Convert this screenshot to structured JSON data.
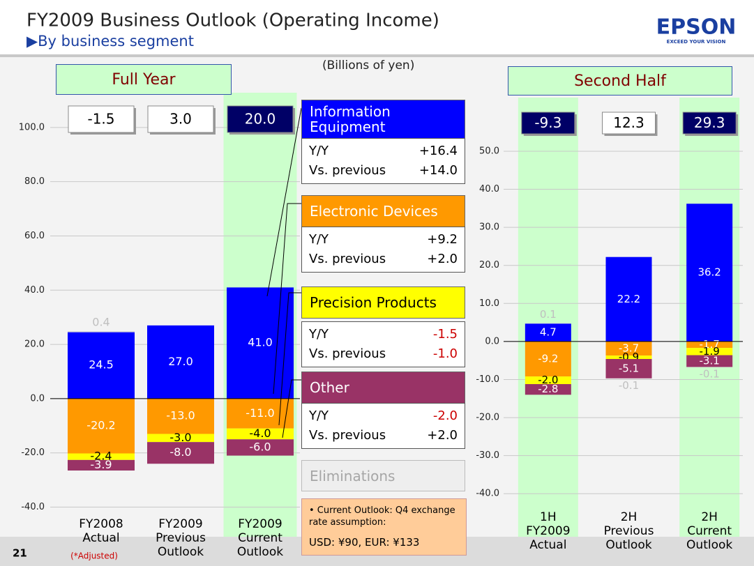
{
  "header": {
    "title": "FY2009 Business Outlook (Operating Income)",
    "subtitle": "▶By business segment",
    "logo": "EPSON",
    "tagline": "EXCEED YOUR VISION",
    "page": "21"
  },
  "unit": "(Billions of yen)",
  "footnote": "(*Adjusted)",
  "legend": {
    "row_labels": [
      "Y/Y",
      "Vs. previous"
    ],
    "rows": [
      {
        "yy": "+16.4",
        "vs": "+14.0"
      },
      {
        "yy": "+9.2",
        "vs": "+2.0"
      },
      {
        "yy": "-1.5",
        "vs": "-1.0"
      },
      {
        "yy": "-2.0",
        "vs": "+2.0"
      }
    ]
  },
  "note": {
    "lines": [
      "• Current Outlook: Q4 exchange rate assumption:",
      "USD: ¥90, EUR: ¥133"
    ]
  },
  "chart_data": [
    {
      "type": "bar",
      "stacked": true,
      "title": "Full Year",
      "categories": [
        "FY2008\nActual",
        "FY2009\nPrevious\nOutlook",
        "FY2009\nCurrent\nOutlook"
      ],
      "totals": [
        "-1.5",
        "3.0",
        "20.0"
      ],
      "highlight": [
        false,
        false,
        true
      ],
      "series": [
        {
          "name": "Information Equipment",
          "color": "#0000ff",
          "label_color": "#ffffff",
          "values": [
            24.5,
            27.0,
            41.0
          ],
          "value_labels": [
            "24.5",
            "27.0",
            "41.0"
          ]
        },
        {
          "name": "Electronic Devices",
          "color": "#ff9900",
          "label_color": "#ffffff",
          "values": [
            -20.2,
            -13.0,
            -11.0
          ],
          "value_labels": [
            "-20.2",
            "-13.0",
            "-11.0"
          ]
        },
        {
          "name": "Precision Products",
          "color": "#ffff00",
          "label_color": "#000000",
          "values": [
            -2.4,
            -3.0,
            -4.0
          ],
          "value_labels": [
            "-2.4",
            "-3.0",
            "-4.0"
          ]
        },
        {
          "name": "Other",
          "color": "#993366",
          "label_color": "#ffffff",
          "values": [
            -3.9,
            -8.0,
            -6.0
          ],
          "value_labels": [
            "-3.9",
            "-8.0",
            "-6.0"
          ]
        },
        {
          "name": "Eliminations",
          "color": "#d9d9d9",
          "label_color": "#bfbfbf",
          "values": [
            0.4,
            null,
            null
          ],
          "value_labels": [
            "0.4",
            null,
            null
          ]
        }
      ],
      "ylim": [
        -45,
        120
      ],
      "yticks": [
        {
          "value": -40,
          "label": "-40.0"
        },
        {
          "value": -20,
          "label": "-20.0"
        },
        {
          "value": 0,
          "label": "0.0"
        },
        {
          "value": 20,
          "label": "20.0"
        },
        {
          "value": 40,
          "label": "40.0"
        },
        {
          "value": 60,
          "label": "60.0"
        },
        {
          "value": 80,
          "label": "80.0"
        },
        {
          "value": 100,
          "label": "100.0"
        }
      ],
      "grid": true
    },
    {
      "type": "bar",
      "stacked": true,
      "title": "Second Half",
      "categories": [
        "1H\nFY2009\nActual",
        "2H\nPrevious\nOutlook",
        "2H\nCurrent\nOutlook"
      ],
      "totals": [
        "-9.3",
        "12.3",
        "29.3"
      ],
      "highlight": [
        true,
        false,
        true
      ],
      "series": [
        {
          "color": "#0000ff",
          "label_color": "#ffffff",
          "values": [
            4.7,
            22.2,
            36.2
          ],
          "value_labels": [
            "4.7",
            "22.2",
            "36.2"
          ]
        },
        {
          "color": "#ff9900",
          "label_color": "#ffffff",
          "values": [
            -9.2,
            -3.7,
            -1.7
          ],
          "value_labels": [
            "-9.2",
            "-3.7",
            "-1.7"
          ]
        },
        {
          "color": "#ffff00",
          "label_color": "#000000",
          "values": [
            -2.0,
            -0.9,
            -1.9
          ],
          "value_labels": [
            "-2.0",
            "-0.9",
            "-1.9"
          ]
        },
        {
          "color": "#993366",
          "label_color": "#ffffff",
          "values": [
            -2.8,
            -5.1,
            -3.1
          ],
          "value_labels": [
            "-2.8",
            "-5.1",
            "-3.1"
          ]
        },
        {
          "color": "#d9d9d9",
          "label_color": "#bfbfbf",
          "values": [
            0.1,
            -0.1,
            -0.1
          ],
          "value_labels": [
            "0.1",
            "-0.1",
            "-0.1"
          ]
        }
      ],
      "ylim": [
        -46,
        66
      ],
      "yticks": [
        {
          "value": -40,
          "label": "-40.0"
        },
        {
          "value": -30,
          "label": "-30.0"
        },
        {
          "value": -20,
          "label": "-20.0"
        },
        {
          "value": -10,
          "label": "-10.0"
        },
        {
          "value": 0,
          "label": "0.0"
        },
        {
          "value": 10,
          "label": "10.0"
        },
        {
          "value": 20,
          "label": "20.0"
        },
        {
          "value": 30,
          "label": "30.0"
        },
        {
          "value": 40,
          "label": "40.0"
        },
        {
          "value": 50,
          "label": "50.0"
        }
      ],
      "grid": true
    }
  ]
}
